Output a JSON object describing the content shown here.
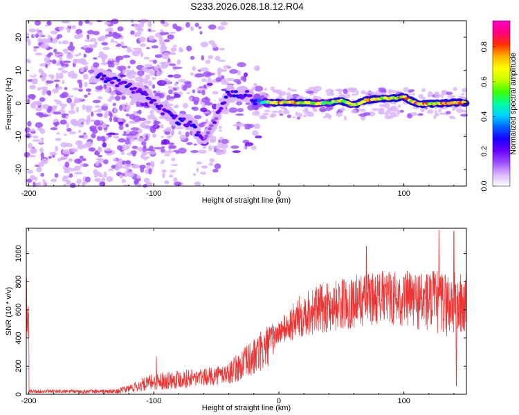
{
  "title": "S233.2026.028.18.12.R04",
  "chart_data": [
    {
      "type": "heatmap",
      "name": "spectrogram",
      "xlabel": "Height of straight line (km)",
      "ylabel": "Frequency (Hz)",
      "xlim": [
        -202,
        150
      ],
      "ylim": [
        -25,
        25
      ],
      "xticks": [
        -200,
        -100,
        0,
        100
      ],
      "yticks": [
        -20,
        -10,
        0,
        10,
        20
      ],
      "colorbar": {
        "label": "Normalized spectral amplitude",
        "range": [
          0,
          0.95
        ],
        "ticks": [
          0.0,
          0.2,
          0.4,
          0.6,
          0.8
        ],
        "tick_labels": [
          "0.0",
          "0.2",
          "0.4",
          "0.6",
          "0.8"
        ],
        "colormap": [
          "#ffffff",
          "#d9b3ff",
          "#9c4dff",
          "#6a00ff",
          "#1a00ff",
          "#0060ff",
          "#00d4ff",
          "#00ff9c",
          "#3cff00",
          "#c8ff00",
          "#ffff00",
          "#ffb000",
          "#ff3000",
          "#ff0080",
          "#ff00c8"
        ]
      },
      "ridge": [
        {
          "x": -145,
          "f": 8.5,
          "a": 0.3
        },
        {
          "x": -135,
          "f": 7.0,
          "a": 0.25
        },
        {
          "x": -120,
          "f": 5.0,
          "a": 0.25
        },
        {
          "x": -110,
          "f": 3.0,
          "a": 0.25
        },
        {
          "x": -100,
          "f": 0.5,
          "a": 0.25
        },
        {
          "x": -90,
          "f": -3.0,
          "a": 0.25
        },
        {
          "x": -80,
          "f": -5.5,
          "a": 0.3
        },
        {
          "x": -70,
          "f": -6.0,
          "a": 0.25
        },
        {
          "x": -60,
          "f": -11.5,
          "a": 0.2
        },
        {
          "x": -40,
          "f": 3.0,
          "a": 0.25
        },
        {
          "x": -25,
          "f": 2.5,
          "a": 0.25
        },
        {
          "x": -20,
          "f": 0.5,
          "a": 0.3
        },
        {
          "x": -10,
          "f": 0.3,
          "a": 0.55
        },
        {
          "x": 0,
          "f": 0.2,
          "a": 0.85
        },
        {
          "x": 10,
          "f": 0.3,
          "a": 0.8
        },
        {
          "x": 20,
          "f": 0.2,
          "a": 0.75
        },
        {
          "x": 30,
          "f": 0.0,
          "a": 0.7
        },
        {
          "x": 40,
          "f": 0.2,
          "a": 0.7
        },
        {
          "x": 50,
          "f": 0.8,
          "a": 0.75
        },
        {
          "x": 60,
          "f": -0.5,
          "a": 0.7
        },
        {
          "x": 70,
          "f": 1.0,
          "a": 0.8
        },
        {
          "x": 80,
          "f": 1.5,
          "a": 0.75
        },
        {
          "x": 90,
          "f": 1.5,
          "a": 0.8
        },
        {
          "x": 100,
          "f": 2.0,
          "a": 0.8
        },
        {
          "x": 110,
          "f": 0.0,
          "a": 0.85
        },
        {
          "x": 120,
          "f": -0.2,
          "a": 0.8
        },
        {
          "x": 130,
          "f": 0.0,
          "a": 0.8
        },
        {
          "x": 140,
          "f": 0.2,
          "a": 0.85
        },
        {
          "x": 150,
          "f": 0.3,
          "a": 0.85
        }
      ]
    },
    {
      "type": "line",
      "name": "snr",
      "xlabel": "Height of straight line (km)",
      "ylabel": "SNR (10 * v/v)",
      "xlim": [
        -202,
        150
      ],
      "ylim": [
        0,
        1180
      ],
      "xticks": [
        -200,
        -100,
        0,
        100
      ],
      "yticks": [
        0,
        200,
        400,
        600,
        800,
        1000
      ],
      "color": "#ee3333",
      "envelope": [
        {
          "x": -200,
          "base": 20,
          "spread": 12
        },
        {
          "x": -130,
          "base": 20,
          "spread": 15
        },
        {
          "x": -120,
          "base": 40,
          "spread": 30
        },
        {
          "x": -100,
          "base": 90,
          "spread": 60
        },
        {
          "x": -80,
          "base": 110,
          "spread": 70
        },
        {
          "x": -60,
          "base": 120,
          "spread": 60
        },
        {
          "x": -40,
          "base": 150,
          "spread": 80
        },
        {
          "x": -20,
          "base": 260,
          "spread": 140
        },
        {
          "x": -10,
          "base": 330,
          "spread": 160
        },
        {
          "x": 0,
          "base": 440,
          "spread": 80
        },
        {
          "x": 10,
          "base": 500,
          "spread": 130
        },
        {
          "x": 20,
          "base": 580,
          "spread": 170
        },
        {
          "x": 40,
          "base": 620,
          "spread": 180
        },
        {
          "x": 60,
          "base": 660,
          "spread": 190
        },
        {
          "x": 80,
          "base": 690,
          "spread": 190
        },
        {
          "x": 100,
          "base": 680,
          "spread": 200
        },
        {
          "x": 120,
          "base": 660,
          "spread": 230
        },
        {
          "x": 140,
          "base": 640,
          "spread": 240
        },
        {
          "x": 150,
          "base": 630,
          "spread": 240
        }
      ],
      "peaks": [
        {
          "x": -98,
          "y": 270
        },
        {
          "x": -68,
          "y": 130
        },
        {
          "x": 70,
          "y": 1050
        },
        {
          "x": 128,
          "y": 1170
        },
        {
          "x": 140,
          "y": 1160
        },
        {
          "x": 142,
          "y": 60
        }
      ]
    }
  ]
}
